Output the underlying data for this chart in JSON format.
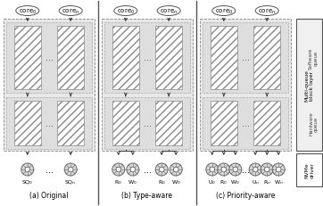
{
  "fig_w": 3.62,
  "fig_h": 2.32,
  "dpi": 100,
  "bg": "#ffffff",
  "gray_bg": "#e8e8e8",
  "light_bg": "#f0f0f0",
  "border": "#555555",
  "mid_border": "#888888",
  "hatch_ec": "#888888",
  "arrow_color": "#333333",
  "disk_fc": "#d8d8d8",
  "disk_ec": "#666666",
  "sections": [
    "(a) Original",
    "(b) Type-aware",
    "(c) Priority-aware"
  ],
  "mq_label": "Multi-queue\nblock layer",
  "sw_label": "Software\nqueue",
  "hw_label": "Hardware\nqueue",
  "nvme_label": "NVMe\ndriver"
}
